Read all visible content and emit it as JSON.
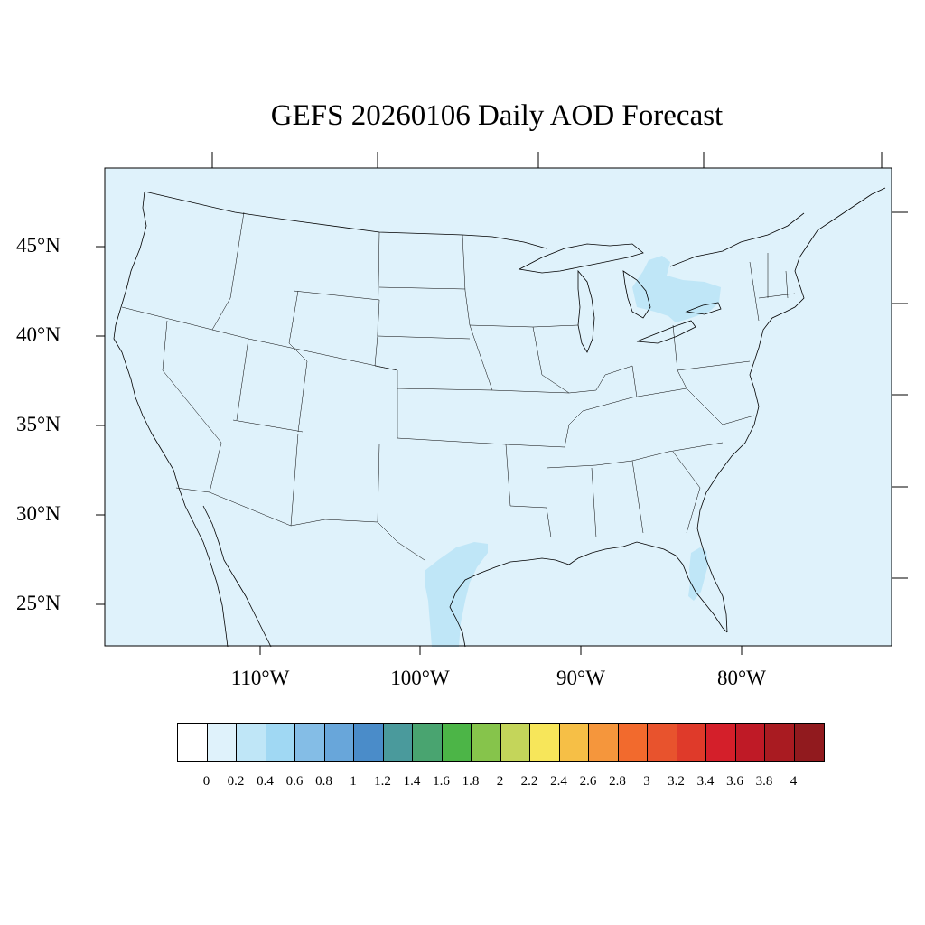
{
  "title": "GEFS 20260106 Daily AOD Forecast",
  "map": {
    "land_fill": "#dff2fb",
    "highlight_fill": "#bfe6f7",
    "line_color": "#000000",
    "lat_labels": [
      "45°N",
      "40°N",
      "35°N",
      "30°N",
      "25°N"
    ],
    "lon_labels": [
      "110°W",
      "100°W",
      "90°W",
      "80°W"
    ]
  },
  "colorbar": {
    "colors": [
      "#ffffff",
      "#dff2fb",
      "#bfe6f7",
      "#a0d8f3",
      "#84bde6",
      "#68a6da",
      "#4a8cc9",
      "#4a9a9c",
      "#49a470",
      "#4cb547",
      "#86c44b",
      "#c4d55a",
      "#f7e65a",
      "#f6bf46",
      "#f5963c",
      "#f26a2d",
      "#e8532d",
      "#df3a2a",
      "#d41f2a",
      "#bf1a26",
      "#a91b21",
      "#911a1e"
    ],
    "labels": [
      "0",
      "0.2",
      "0.4",
      "0.6",
      "0.8",
      "1",
      "1.2",
      "1.4",
      "1.6",
      "1.8",
      "2",
      "2.2",
      "2.4",
      "2.6",
      "2.8",
      "3",
      "3.2",
      "3.4",
      "3.6",
      "3.8",
      "4"
    ]
  }
}
